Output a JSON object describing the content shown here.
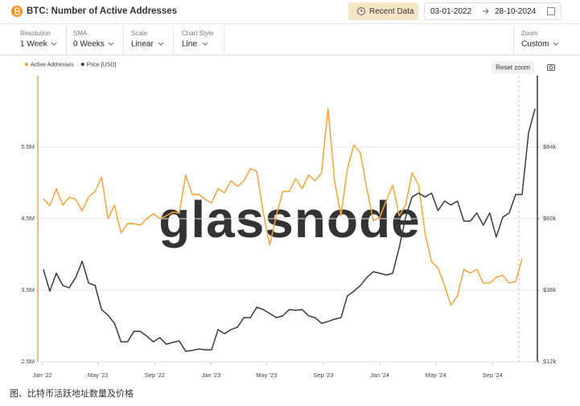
{
  "header": {
    "title": "BTC: Number of Active Addresses",
    "recent_button": "Recent Data",
    "date_from": "03-01-2022",
    "date_to": "28-10-2024"
  },
  "controls": [
    {
      "label": "Resolution",
      "value": "1 Week"
    },
    {
      "label": "SMA",
      "value": "0 Weeks"
    },
    {
      "label": "Scale",
      "value": "Linear"
    },
    {
      "label": "Chart Style",
      "value": "Line"
    }
  ],
  "zoom": {
    "label": "Zoom",
    "value": "Custom"
  },
  "reset_zoom": "Reset zoom",
  "caption": "图、比特币活跃地址数量及价格",
  "chart_data": {
    "type": "line",
    "watermark": "glassnode",
    "legend": "top-left",
    "grid": true,
    "x": [
      "2022-01-03",
      "2022-01-17",
      "2022-01-31",
      "2022-02-14",
      "2022-02-28",
      "2022-03-14",
      "2022-03-28",
      "2022-04-11",
      "2022-04-25",
      "2022-05-09",
      "2022-05-23",
      "2022-06-06",
      "2022-06-20",
      "2022-07-04",
      "2022-07-18",
      "2022-08-01",
      "2022-08-15",
      "2022-08-29",
      "2022-09-12",
      "2022-09-26",
      "2022-10-10",
      "2022-10-24",
      "2022-11-07",
      "2022-11-21",
      "2022-12-05",
      "2022-12-19",
      "2023-01-02",
      "2023-01-16",
      "2023-01-30",
      "2023-02-13",
      "2023-02-27",
      "2023-03-13",
      "2023-03-27",
      "2023-04-10",
      "2023-04-24",
      "2023-05-08",
      "2023-05-22",
      "2023-06-05",
      "2023-06-19",
      "2023-07-03",
      "2023-07-17",
      "2023-07-31",
      "2023-08-14",
      "2023-08-28",
      "2023-09-11",
      "2023-09-25",
      "2023-10-09",
      "2023-10-23",
      "2023-11-06",
      "2023-11-20",
      "2023-12-04",
      "2023-12-18",
      "2024-01-01",
      "2024-01-15",
      "2024-01-29",
      "2024-02-12",
      "2024-02-26",
      "2024-03-11",
      "2024-03-25",
      "2024-04-08",
      "2024-04-22",
      "2024-05-06",
      "2024-05-20",
      "2024-06-03",
      "2024-06-17",
      "2024-07-01",
      "2024-07-15",
      "2024-07-29",
      "2024-08-12",
      "2024-08-26",
      "2024-09-09",
      "2024-09-23",
      "2024-10-07",
      "2024-10-21",
      "2024-11-04",
      "2024-11-18",
      "2024-12-02"
    ],
    "series": [
      {
        "name": "Active Addresses",
        "color": "#f5a33c",
        "values": [
          4780000,
          4680000,
          4920000,
          4690000,
          4800000,
          4770000,
          4610000,
          4800000,
          4880000,
          5080000,
          4500000,
          4690000,
          4300000,
          4430000,
          4430000,
          4410000,
          4500000,
          4570000,
          4500000,
          4540000,
          4590000,
          4580000,
          5110000,
          4840000,
          4840000,
          4770000,
          4720000,
          4920000,
          4860000,
          5030000,
          4950000,
          5030000,
          5200000,
          5160000,
          4580000,
          4130000,
          4540000,
          4880000,
          4880000,
          5060000,
          4920000,
          5110000,
          5030000,
          5140000,
          6040000,
          5030000,
          4540000,
          5200000,
          5530000,
          5420000,
          4920000,
          4470000,
          4520000,
          4750000,
          4970000,
          4540000,
          4690000,
          5140000,
          4970000,
          4300000,
          3900000,
          3810000,
          3570000,
          3290000,
          3420000,
          3790000,
          3740000,
          3790000,
          3600000,
          3600000,
          3680000,
          3710000,
          3600000,
          3620000,
          3940000,
          null,
          null
        ]
      },
      {
        "name": "Price [USD]",
        "color": "#3a3a3a",
        "axis": "y2",
        "values": [
          43000,
          35700,
          41700,
          37600,
          36800,
          40300,
          45700,
          38400,
          37600,
          29500,
          27600,
          24900,
          18700,
          18700,
          22200,
          22200,
          20600,
          18700,
          20100,
          17900,
          18500,
          19000,
          15500,
          15800,
          16300,
          16000,
          16000,
          22800,
          21400,
          22800,
          23600,
          26800,
          26800,
          30300,
          29500,
          28200,
          26800,
          27400,
          29500,
          29300,
          29500,
          27400,
          26800,
          24900,
          25500,
          26300,
          26800,
          34100,
          35700,
          37600,
          40300,
          42200,
          41700,
          41100,
          41700,
          50300,
          60500,
          67300,
          68600,
          67300,
          68600,
          62700,
          65900,
          64600,
          65900,
          59200,
          59200,
          61900,
          57800,
          61900,
          53800,
          60500,
          61900,
          68100,
          68100,
          88900,
          96900
        ]
      }
    ],
    "xlim": [
      "2021-12-22",
      "2024-12-07"
    ],
    "xticks": [
      {
        "value": "2022-01-01",
        "label": "Jan '22"
      },
      {
        "value": "2022-05-01",
        "label": "May '22"
      },
      {
        "value": "2022-09-01",
        "label": "Sep '22"
      },
      {
        "value": "2023-01-01",
        "label": "Jan '23"
      },
      {
        "value": "2023-05-01",
        "label": "May '23"
      },
      {
        "value": "2023-09-01",
        "label": "Sep '23"
      },
      {
        "value": "2024-01-01",
        "label": "Jan '24"
      },
      {
        "value": "2024-05-01",
        "label": "May '24"
      },
      {
        "value": "2024-09-01",
        "label": "Sep '24"
      }
    ],
    "ylim": [
      2500000,
      6500000
    ],
    "yticks": [
      {
        "value": 2500000,
        "label": "2.5M"
      },
      {
        "value": 3500000,
        "label": "3.5M"
      },
      {
        "value": 4500000,
        "label": "4.5M"
      },
      {
        "value": 5500000,
        "label": "5.5M"
      }
    ],
    "y2lim": [
      12000,
      108000
    ],
    "y2ticks": [
      {
        "value": 12000,
        "label": "$12k"
      },
      {
        "value": 36000,
        "label": "$36k"
      },
      {
        "value": 60000,
        "label": "$60k"
      },
      {
        "value": 84000,
        "label": "$84k"
      }
    ]
  }
}
